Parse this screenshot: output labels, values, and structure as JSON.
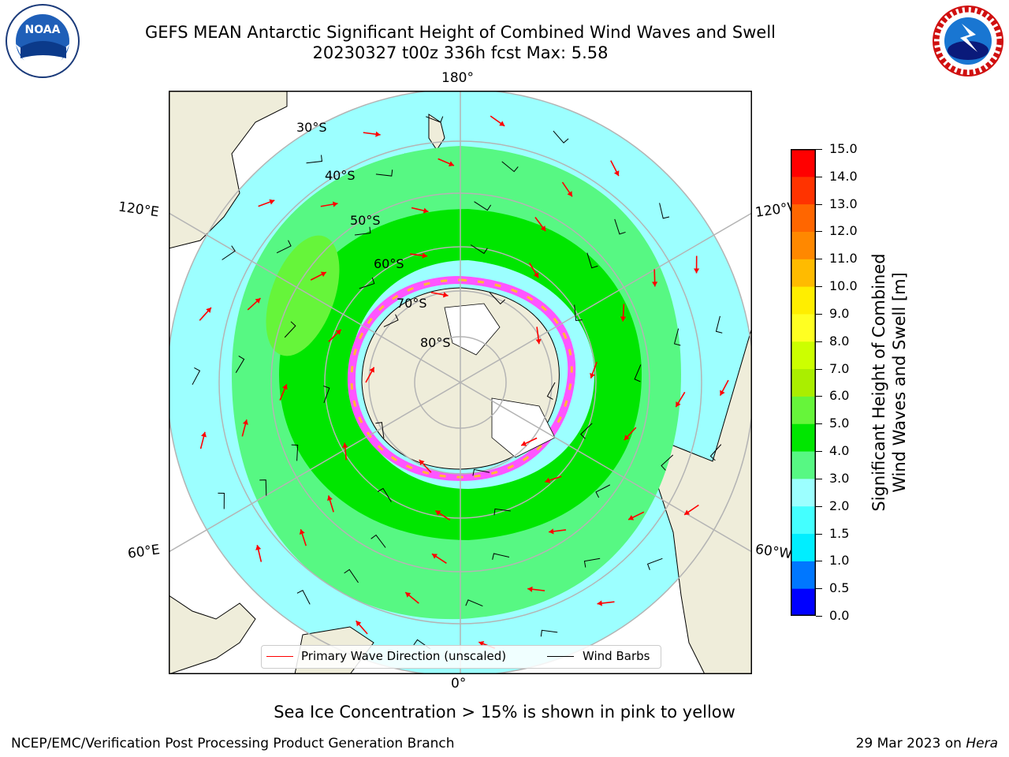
{
  "title_line1": "GEFS MEAN Antarctic Significant Height of Combined Wind Waves and Swell",
  "title_line2": "20230327 t00z 336h fcst   Max: 5.58",
  "logos": {
    "left": "NOAA",
    "right": "NATIONAL WEATHER SERVICE"
  },
  "map": {
    "longitude_labels": {
      "top": "180°",
      "bottom": "0°",
      "left_upper": "120°E",
      "left_lower": "60°E",
      "right_upper": "120°W",
      "right_lower": "60°W"
    },
    "latitude_labels": [
      "30°S",
      "40°S",
      "50°S",
      "60°S",
      "70°S",
      "80°S"
    ],
    "colors": {
      "land": "#efedda",
      "ice_shelf": "#ffffff",
      "wave_cyan": "#9cffff",
      "wave_green_light": "#57f883",
      "wave_green": "#00e600",
      "wave_lime": "#66f53a",
      "sea_ice_pink": "#ff55ff",
      "sea_ice_orange": "#ffbb33",
      "arrow": "#ff0000",
      "barb": "#000000",
      "grid": "#b4b4b4"
    }
  },
  "colorbar": {
    "label": "Significant Height of Combined Wind Waves and Swell [m]",
    "label_line1": "Significant Height of Combined",
    "label_line2": "Wind Waves and Swell [m]",
    "ticks": [
      "0.0",
      "0.5",
      "1.0",
      "1.5",
      "2.0",
      "3.0",
      "4.0",
      "5.0",
      "6.0",
      "7.0",
      "8.0",
      "9.0",
      "10.0",
      "11.0",
      "12.0",
      "13.0",
      "14.0",
      "15.0"
    ],
    "colors": [
      "#0000ff",
      "#0077ff",
      "#00eeff",
      "#44ffff",
      "#9cffff",
      "#57f883",
      "#00e600",
      "#66f53a",
      "#aaee00",
      "#ccff00",
      "#ffff22",
      "#ffee00",
      "#ffbb00",
      "#ff8800",
      "#ff6600",
      "#ff3300",
      "#ff0000"
    ]
  },
  "legend": {
    "wave_label": "Primary Wave Direction (unscaled)",
    "barb_label": "Wind Barbs"
  },
  "subtitle": "Sea Ice Concentration > 15% is shown in pink to yellow",
  "footer": {
    "left": "NCEP/EMC/Verification Post Processing Product Generation Branch",
    "right_date": "29 Mar 2023 on ",
    "right_machine": "Hera"
  }
}
